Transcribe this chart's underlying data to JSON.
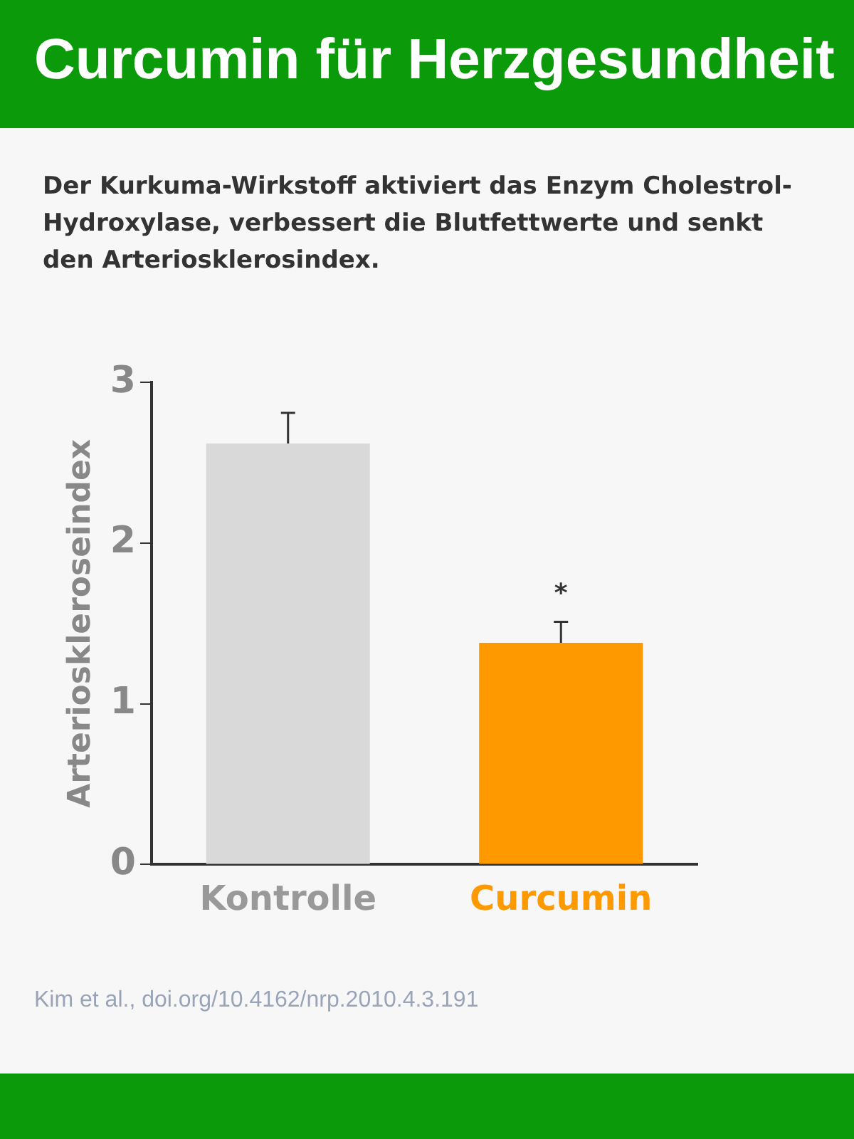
{
  "chart_data": {
    "type": "bar",
    "title": "Curcumin für Herzgesundheit",
    "subtitle": "Der Kurkuma-Wirkstoff aktiviert das Enzym Cholestrol-Hydroxylase, verbessert die Blutfettwerte und senkt den Arteriosklerosindex.",
    "ylabel": "Arterioskleroseindex",
    "categories": [
      "Kontrolle",
      "Curcumin"
    ],
    "values": [
      2.62,
      1.38
    ],
    "colors": [
      "#d9d9d9",
      "#ff9900"
    ],
    "errors": [
      [
        2.62,
        2.81
      ],
      [
        1.38,
        1.51
      ]
    ],
    "ylim": [
      0,
      3
    ],
    "yticks": [
      0,
      1,
      2,
      3
    ],
    "grid": false,
    "annotations": [
      "*",
      "Kim et al., doi.org/10.4162/nrp.2010.4.3.191"
    ]
  }
}
